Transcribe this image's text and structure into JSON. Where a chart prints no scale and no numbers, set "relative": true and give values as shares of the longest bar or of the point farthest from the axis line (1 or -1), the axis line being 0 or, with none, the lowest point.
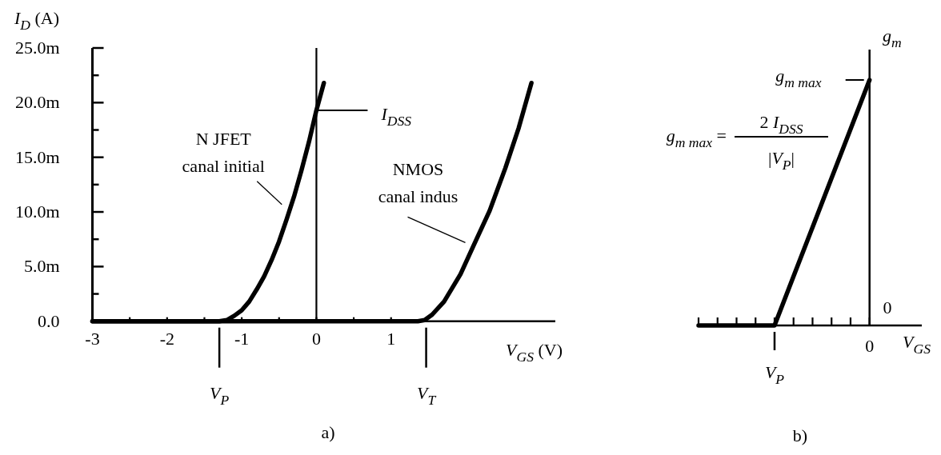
{
  "chart_data": [
    {
      "type": "line",
      "title": "a)",
      "xlabel": "V$_{GS}$ (V)",
      "ylabel": "I$_{D}$ (A)",
      "xlim": [
        -3,
        3.2
      ],
      "xticks": [
        -3,
        {
          "value": -2.5,
          "label": null
        },
        -2,
        {
          "value": -1.5,
          "label": null
        },
        -1,
        {
          "value": -0.5,
          "label": null
        },
        0,
        {
          "value": 0.5,
          "label": null
        },
        1
      ],
      "ylim": [
        0,
        25
      ],
      "yticks": [
        {
          "value": 0,
          "label": "0.0"
        },
        {
          "value": 2.5,
          "label": null
        },
        {
          "value": 5,
          "label": "5.0m"
        },
        {
          "value": 7.5,
          "label": null
        },
        {
          "value": 10,
          "label": "10.0m"
        },
        {
          "value": 12.5,
          "label": null
        },
        {
          "value": 15,
          "label": "15.0m"
        },
        {
          "value": 17.5,
          "label": null
        },
        {
          "value": 20,
          "label": "20.0m"
        },
        {
          "value": 22.5,
          "label": null
        },
        {
          "value": 25,
          "label": "25.0m"
        }
      ],
      "series": [
        {
          "name": "N JFET\ncanal initial",
          "color": "#000000",
          "x": [
            -3,
            -1.3,
            -1.2,
            -1.1,
            -1,
            -0.9,
            -0.8,
            -0.7,
            -0.6,
            -0.5,
            -0.4,
            -0.3,
            -0.2,
            -0.1,
            0,
            0.1
          ],
          "values": [
            0,
            0,
            0.1,
            0.5,
            1,
            1.8,
            2.9,
            4.1,
            5.6,
            7.3,
            9.3,
            11.4,
            13.8,
            16.4,
            19.3,
            21.8
          ]
        },
        {
          "name": "NMOS\ncanal indus",
          "color": "#000000",
          "x": [
            -3,
            1.36,
            1.45,
            1.55,
            1.71,
            1.93,
            2.11,
            2.32,
            2.53,
            2.71,
            2.88
          ],
          "values": [
            0,
            0,
            0.1,
            0.6,
            1.8,
            4.3,
            7,
            10.1,
            14,
            17.7,
            21.8
          ]
        }
      ],
      "ref_lines": [
        {
          "axis": "x",
          "value": 0
        },
        {
          "axis": "x",
          "value": -1.3,
          "label": "V$_{P}$"
        },
        {
          "axis": "x",
          "value": 1.47,
          "label": "V$_{T}$"
        },
        {
          "axis": "y",
          "value": 19.3,
          "label": "I$_{DSS}$"
        }
      ]
    },
    {
      "type": "line",
      "title": "b)",
      "xlabel": "V$_{GS}$",
      "ylabel": "g$_{m}$",
      "relative": true,
      "categories": [
        null,
        null,
        null,
        null,
        "V$_{P}$",
        null,
        null,
        null,
        null,
        "0"
      ],
      "values": [
        0,
        0,
        0,
        0,
        0,
        0.2,
        0.4,
        0.6,
        0.8,
        1
      ],
      "color": "#000000",
      "ref_lines": [
        {
          "axis": "y",
          "value": 1,
          "label": "g$_{m max}$"
        }
      ],
      "annotations": [
        "g$_{m max}$ =",
        "2 I$_{DSS}$",
        "|V$_{P}$|",
        "0"
      ]
    }
  ]
}
